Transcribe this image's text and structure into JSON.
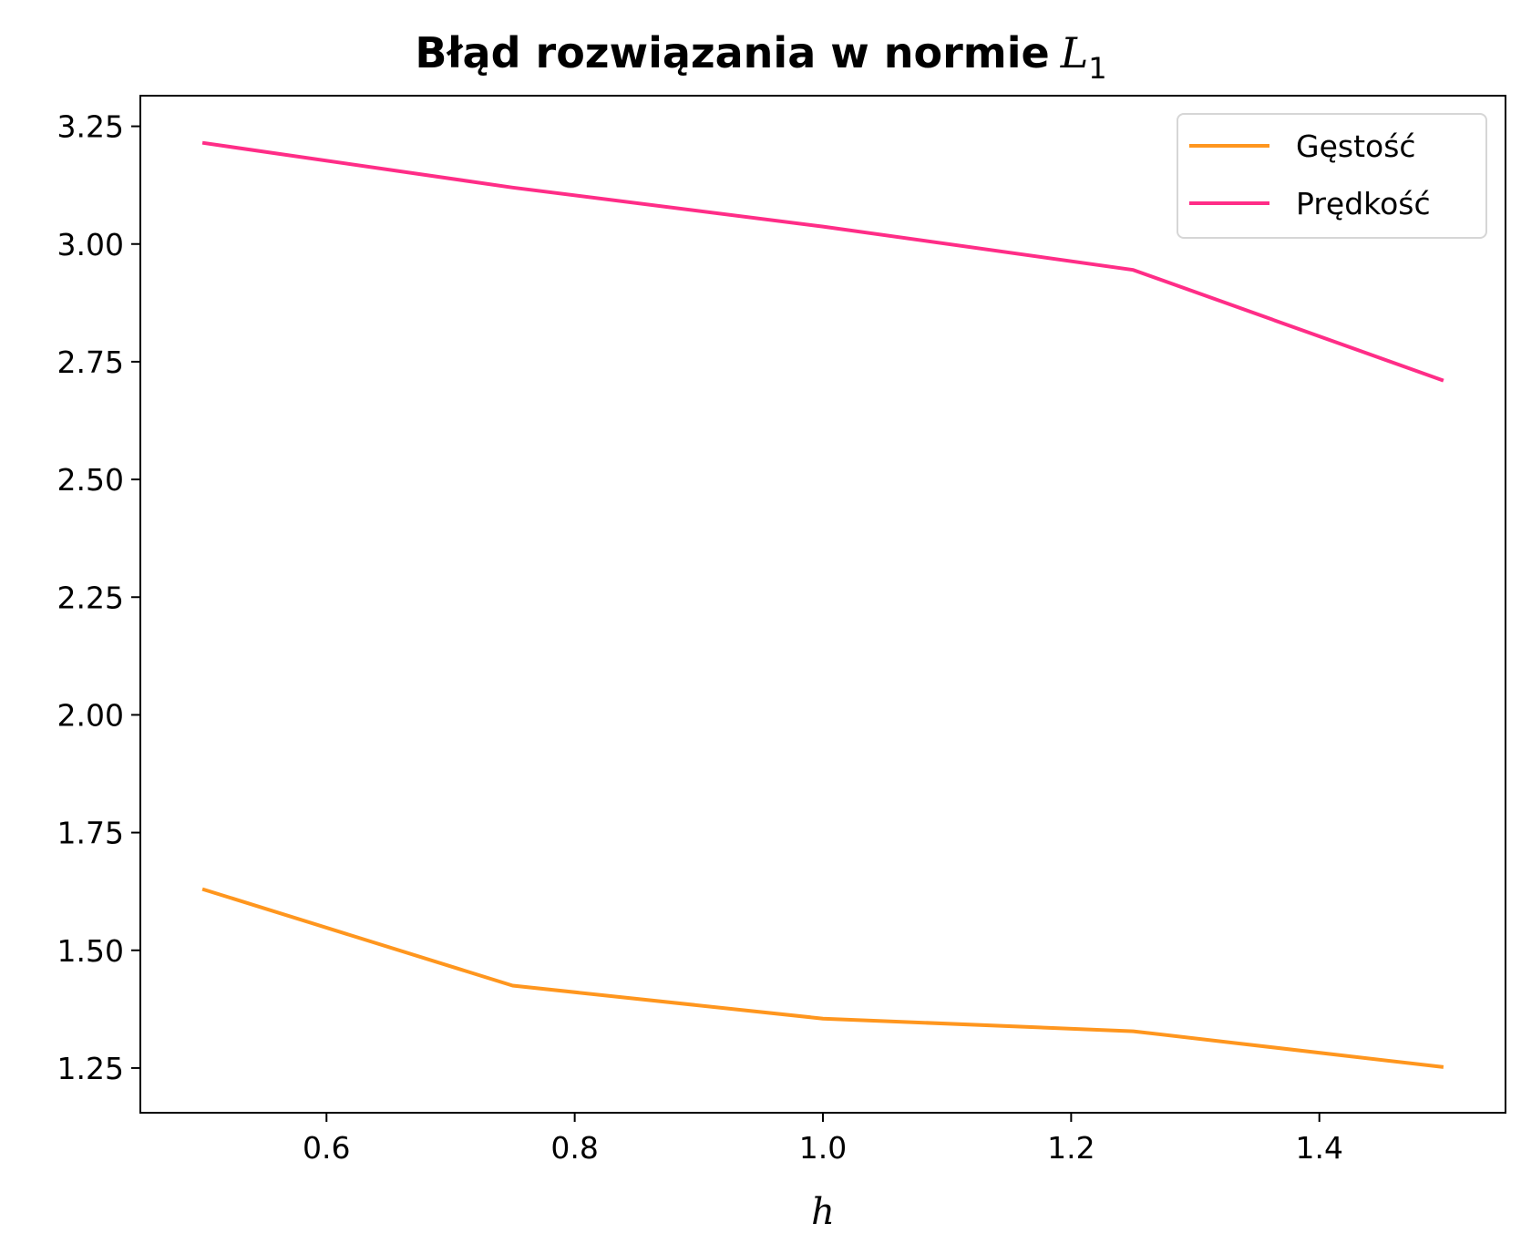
{
  "chart_data": {
    "type": "line",
    "title": "Błąd rozwiązania w normie",
    "title_math": "L",
    "title_math_sub": "1",
    "xlabel": "h",
    "ylabel": "",
    "x": [
      0.5,
      0.75,
      1.0,
      1.25,
      1.5
    ],
    "xlim": [
      0.45,
      1.55
    ],
    "ylim": [
      1.155,
      3.315
    ],
    "xticks": [
      0.6,
      0.8,
      1.0,
      1.2,
      1.4
    ],
    "xtick_labels": [
      "0.6",
      "0.8",
      "1.0",
      "1.2",
      "1.4"
    ],
    "yticks": [
      1.25,
      1.5,
      1.75,
      2.0,
      2.25,
      2.5,
      2.75,
      3.0,
      3.25
    ],
    "ytick_labels": [
      "1.25",
      "1.50",
      "1.75",
      "2.00",
      "2.25",
      "2.50",
      "2.75",
      "3.00",
      "3.25"
    ],
    "grid": false,
    "legend_position": "top-right",
    "series": [
      {
        "name": "Gęstość",
        "color": "#ff961e",
        "values": [
          1.63,
          1.425,
          1.355,
          1.328,
          1.252
        ]
      },
      {
        "name": "Prędkość",
        "color": "#ff2d87",
        "values": [
          3.215,
          3.12,
          3.037,
          2.945,
          2.71
        ]
      }
    ]
  }
}
